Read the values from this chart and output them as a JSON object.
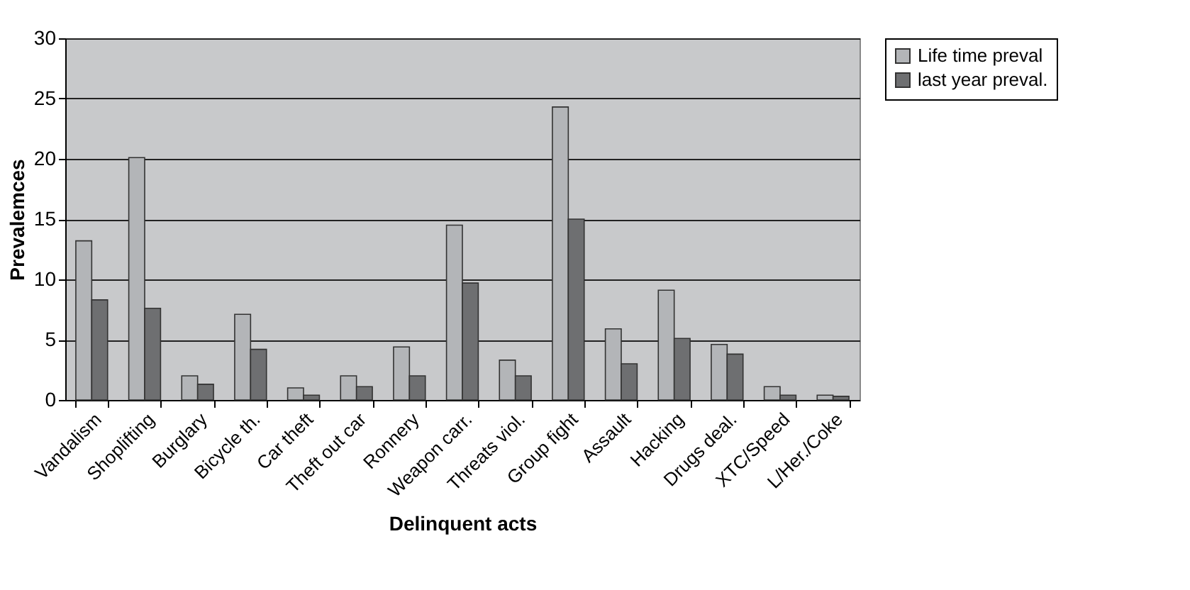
{
  "chart_data": {
    "type": "bar",
    "xlabel": "Delinquent acts",
    "ylabel": "Prevalemces",
    "categories": [
      "Vandalism",
      "Shoplifting",
      "Burglary",
      "Bicycle th.",
      "Car theft",
      "Theft out car",
      "Ronnery",
      "Weapon carr.",
      "Threats viol.",
      "Group fight",
      "Assault",
      "Hacking",
      "Drugs deal.",
      "XTC/Speed",
      "L/Her./Coke"
    ],
    "series": [
      {
        "name": "Life time preval",
        "color": "#b3b5b8",
        "values": [
          13.2,
          20.1,
          2.0,
          7.1,
          1.0,
          2.0,
          4.4,
          14.5,
          3.3,
          24.3,
          5.9,
          9.1,
          4.6,
          1.1,
          0.4
        ]
      },
      {
        "name": "last year preval.",
        "color": "#6e6f71",
        "values": [
          8.3,
          7.6,
          1.3,
          4.2,
          0.4,
          1.1,
          2.0,
          9.7,
          2.0,
          15.0,
          3.0,
          5.1,
          3.8,
          0.4,
          0.3
        ]
      }
    ],
    "ylim": [
      0,
      30
    ],
    "yticks": [
      0,
      5,
      10,
      15,
      20,
      25,
      30
    ],
    "grid": "y",
    "legend": "right"
  }
}
